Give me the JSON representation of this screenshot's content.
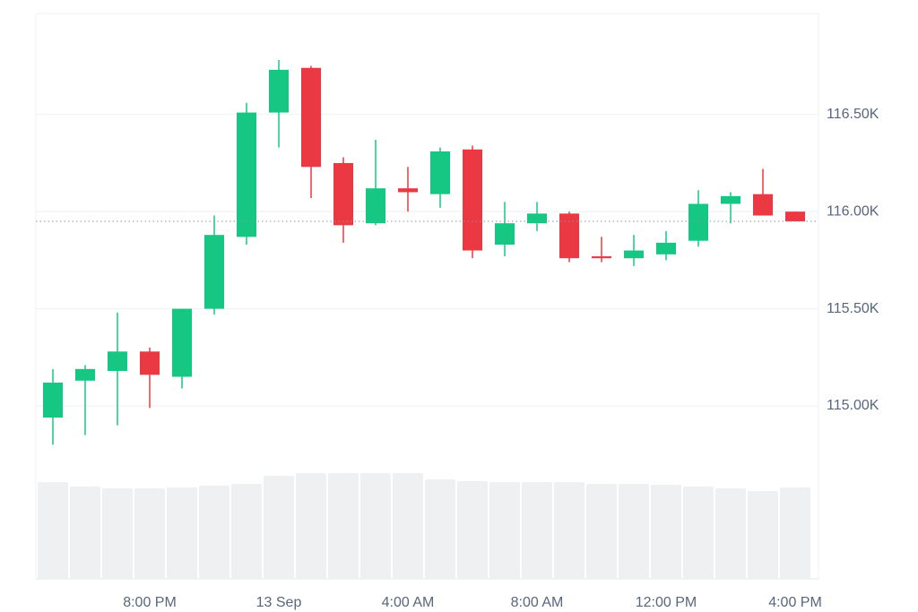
{
  "chart_data": {
    "type": "candlestick",
    "categories": [
      null,
      null,
      null,
      "8:00 PM",
      null,
      null,
      null,
      "13 Sep",
      null,
      null,
      null,
      "4:00 AM",
      null,
      null,
      null,
      "8:00 AM",
      null,
      null,
      null,
      "12:00 PM",
      null,
      null,
      null,
      "4:00 PM"
    ],
    "open": [
      114940,
      115130,
      115180,
      115280,
      115150,
      115500,
      115870,
      116510,
      116740,
      116250,
      115940,
      116120,
      116090,
      116320,
      115830,
      115940,
      115990,
      115770,
      115760,
      115780,
      115850,
      116040,
      116090,
      116000
    ],
    "high": [
      115190,
      115210,
      115480,
      115300,
      115500,
      115980,
      116560,
      116780,
      116750,
      116280,
      116370,
      116230,
      116330,
      116340,
      116050,
      116050,
      116000,
      115870,
      115880,
      115900,
      116110,
      116100,
      116220,
      116000
    ],
    "low": [
      114800,
      114850,
      114900,
      114990,
      115090,
      115470,
      115830,
      116330,
      116070,
      115840,
      115930,
      116000,
      116020,
      115760,
      115770,
      115900,
      115740,
      115740,
      115720,
      115750,
      115820,
      115940,
      115980,
      115950
    ],
    "close": [
      115120,
      115190,
      115280,
      115160,
      115500,
      115880,
      116510,
      116730,
      116230,
      115930,
      116120,
      116100,
      116310,
      115800,
      115940,
      115990,
      115760,
      115760,
      115800,
      115840,
      116040,
      116080,
      115980,
      115950
    ],
    "volume": [
      108,
      103,
      101,
      101,
      102,
      104,
      106,
      115,
      118,
      118,
      118,
      118,
      111,
      109,
      108,
      108,
      108,
      106,
      106,
      105,
      103,
      101,
      98,
      102
    ],
    "vlim": [
      0,
      631
    ],
    "up_color": "#16c784",
    "down_color": "#ea3943",
    "volume_color": "#eff0f2",
    "ylim": [
      114110,
      117020
    ],
    "yticks": [
      {
        "value": 115000,
        "label": "115.00K"
      },
      {
        "value": 115500,
        "label": "115.50K"
      },
      {
        "value": 116000,
        "label": "116.00K"
      },
      {
        "value": 116500,
        "label": "116.50K"
      }
    ],
    "grid": true
  }
}
